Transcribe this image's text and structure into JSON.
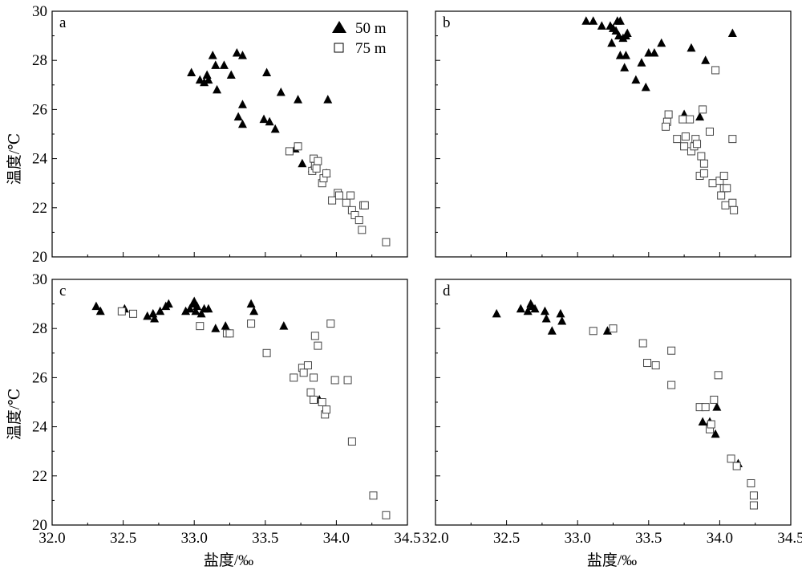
{
  "figure": {
    "xlabel": "盐度/‰",
    "ylabel": "温度/℃",
    "x_ticks": [
      "32.0",
      "32.5",
      "33.0",
      "33.5",
      "34.0",
      "34.5"
    ],
    "y_ticks": [
      "20",
      "22",
      "24",
      "26",
      "28",
      "30"
    ],
    "legend": [
      {
        "label": "50 m",
        "marker": "filled-triangle"
      },
      {
        "label": "75 m",
        "marker": "open-square"
      }
    ]
  },
  "chart_data": [
    {
      "type": "scatter",
      "panel": "a",
      "xlim": [
        32.0,
        34.5
      ],
      "ylim": [
        20,
        30
      ],
      "series": [
        {
          "name": "50 m",
          "marker": "filled-triangle",
          "color": "#000000",
          "points": [
            [
              32.98,
              27.5
            ],
            [
              33.04,
              27.2
            ],
            [
              33.07,
              27.1
            ],
            [
              33.09,
              27.4
            ],
            [
              33.1,
              27.2
            ],
            [
              33.13,
              28.2
            ],
            [
              33.15,
              27.8
            ],
            [
              33.16,
              26.8
            ],
            [
              33.21,
              27.8
            ],
            [
              33.26,
              27.4
            ],
            [
              33.3,
              28.3
            ],
            [
              33.34,
              28.2
            ],
            [
              33.31,
              25.7
            ],
            [
              33.34,
              26.2
            ],
            [
              33.34,
              25.4
            ],
            [
              33.49,
              25.6
            ],
            [
              33.51,
              27.5
            ],
            [
              33.53,
              25.5
            ],
            [
              33.57,
              25.2
            ],
            [
              33.61,
              26.7
            ],
            [
              33.71,
              24.4
            ],
            [
              33.73,
              26.4
            ],
            [
              33.76,
              23.8
            ],
            [
              33.83,
              23.6
            ],
            [
              33.93,
              23.4
            ],
            [
              33.94,
              26.4
            ]
          ]
        },
        {
          "name": "75 m",
          "marker": "open-square",
          "color": "#000000",
          "points": [
            [
              33.67,
              24.3
            ],
            [
              33.73,
              24.5
            ],
            [
              33.83,
              23.5
            ],
            [
              33.84,
              24.0
            ],
            [
              33.85,
              23.7
            ],
            [
              33.86,
              23.6
            ],
            [
              33.87,
              23.9
            ],
            [
              33.9,
              23.0
            ],
            [
              33.91,
              23.2
            ],
            [
              33.93,
              23.4
            ],
            [
              33.97,
              22.3
            ],
            [
              34.01,
              22.6
            ],
            [
              34.02,
              22.5
            ],
            [
              34.07,
              22.2
            ],
            [
              34.1,
              22.5
            ],
            [
              34.11,
              21.9
            ],
            [
              34.13,
              21.7
            ],
            [
              34.16,
              21.5
            ],
            [
              34.18,
              21.1
            ],
            [
              34.19,
              22.1
            ],
            [
              34.2,
              22.1
            ],
            [
              34.35,
              20.6
            ]
          ]
        }
      ]
    },
    {
      "type": "scatter",
      "panel": "b",
      "xlim": [
        32.0,
        34.5
      ],
      "ylim": [
        20,
        30
      ],
      "series": [
        {
          "name": "50 m",
          "marker": "filled-triangle",
          "color": "#000000",
          "points": [
            [
              33.06,
              29.6
            ],
            [
              33.11,
              29.6
            ],
            [
              33.17,
              29.4
            ],
            [
              33.23,
              29.4
            ],
            [
              33.25,
              29.3
            ],
            [
              33.27,
              29.2
            ],
            [
              33.28,
              29.6
            ],
            [
              33.3,
              29.6
            ],
            [
              33.29,
              29.0
            ],
            [
              33.32,
              28.9
            ],
            [
              33.34,
              29.0
            ],
            [
              33.35,
              29.1
            ],
            [
              33.24,
              28.7
            ],
            [
              33.3,
              28.2
            ],
            [
              33.34,
              28.2
            ],
            [
              33.33,
              27.7
            ],
            [
              33.41,
              27.2
            ],
            [
              33.45,
              27.9
            ],
            [
              33.48,
              26.9
            ],
            [
              33.5,
              28.3
            ],
            [
              33.54,
              28.3
            ],
            [
              33.59,
              28.7
            ],
            [
              33.75,
              25.8
            ],
            [
              33.8,
              28.5
            ],
            [
              33.86,
              25.7
            ],
            [
              33.9,
              28.0
            ],
            [
              34.09,
              29.1
            ]
          ]
        },
        {
          "name": "75 m",
          "marker": "open-square",
          "color": "#000000",
          "points": [
            [
              33.64,
              25.8
            ],
            [
              33.63,
              25.5
            ],
            [
              33.62,
              25.3
            ],
            [
              33.7,
              24.8
            ],
            [
              33.74,
              25.6
            ],
            [
              33.75,
              24.5
            ],
            [
              33.76,
              24.9
            ],
            [
              33.79,
              25.6
            ],
            [
              33.8,
              24.3
            ],
            [
              33.82,
              24.5
            ],
            [
              33.83,
              24.8
            ],
            [
              33.84,
              24.6
            ],
            [
              33.86,
              23.3
            ],
            [
              33.87,
              24.1
            ],
            [
              33.89,
              23.4
            ],
            [
              33.89,
              23.8
            ],
            [
              33.88,
              26.0
            ],
            [
              33.93,
              25.1
            ],
            [
              33.95,
              23.0
            ],
            [
              33.97,
              27.6
            ],
            [
              34.0,
              23.1
            ],
            [
              34.01,
              22.5
            ],
            [
              34.03,
              22.8
            ],
            [
              34.03,
              23.3
            ],
            [
              34.04,
              22.1
            ],
            [
              34.05,
              22.8
            ],
            [
              34.09,
              24.8
            ],
            [
              34.09,
              22.2
            ],
            [
              34.1,
              21.9
            ]
          ]
        }
      ]
    },
    {
      "type": "scatter",
      "panel": "c",
      "xlim": [
        32.0,
        34.5
      ],
      "ylim": [
        20,
        30
      ],
      "series": [
        {
          "name": "50 m",
          "marker": "filled-triangle",
          "color": "#000000",
          "points": [
            [
              32.31,
              28.9
            ],
            [
              32.34,
              28.7
            ],
            [
              32.51,
              28.8
            ],
            [
              32.67,
              28.5
            ],
            [
              32.71,
              28.6
            ],
            [
              32.72,
              28.4
            ],
            [
              32.76,
              28.7
            ],
            [
              32.8,
              28.9
            ],
            [
              32.82,
              29.0
            ],
            [
              32.94,
              28.7
            ],
            [
              32.97,
              28.8
            ],
            [
              32.99,
              29.0
            ],
            [
              33.0,
              29.1
            ],
            [
              33.01,
              28.7
            ],
            [
              33.02,
              28.9
            ],
            [
              33.05,
              28.6
            ],
            [
              33.07,
              28.8
            ],
            [
              33.1,
              28.8
            ],
            [
              33.15,
              28.0
            ],
            [
              33.22,
              28.1
            ],
            [
              33.4,
              29.0
            ],
            [
              33.42,
              28.7
            ],
            [
              33.63,
              28.1
            ],
            [
              33.88,
              25.1
            ]
          ]
        },
        {
          "name": "75 m",
          "marker": "open-square",
          "color": "#000000",
          "points": [
            [
              32.49,
              28.7
            ],
            [
              32.57,
              28.6
            ],
            [
              33.04,
              28.1
            ],
            [
              33.23,
              27.8
            ],
            [
              33.25,
              27.8
            ],
            [
              33.4,
              28.2
            ],
            [
              33.51,
              27.0
            ],
            [
              33.7,
              26.0
            ],
            [
              33.76,
              26.4
            ],
            [
              33.77,
              26.2
            ],
            [
              33.8,
              26.5
            ],
            [
              33.82,
              25.4
            ],
            [
              33.84,
              25.1
            ],
            [
              33.84,
              26.0
            ],
            [
              33.85,
              27.7
            ],
            [
              33.87,
              27.3
            ],
            [
              33.9,
              25.0
            ],
            [
              33.92,
              24.5
            ],
            [
              33.93,
              24.7
            ],
            [
              33.96,
              28.2
            ],
            [
              33.99,
              25.9
            ],
            [
              34.08,
              25.9
            ],
            [
              34.11,
              23.4
            ],
            [
              34.26,
              21.2
            ],
            [
              34.35,
              20.4
            ]
          ]
        }
      ]
    },
    {
      "type": "scatter",
      "panel": "d",
      "xlim": [
        32.0,
        34.5
      ],
      "ylim": [
        20,
        30
      ],
      "series": [
        {
          "name": "50 m",
          "marker": "filled-triangle",
          "color": "#000000",
          "points": [
            [
              32.43,
              28.6
            ],
            [
              32.6,
              28.8
            ],
            [
              32.65,
              28.7
            ],
            [
              32.67,
              29.0
            ],
            [
              32.68,
              28.9
            ],
            [
              32.7,
              28.8
            ],
            [
              32.77,
              28.7
            ],
            [
              32.78,
              28.4
            ],
            [
              32.82,
              27.9
            ],
            [
              32.88,
              28.6
            ],
            [
              32.89,
              28.3
            ],
            [
              33.21,
              27.9
            ],
            [
              33.88,
              24.2
            ],
            [
              33.93,
              24.2
            ],
            [
              33.97,
              23.7
            ],
            [
              33.98,
              24.8
            ],
            [
              34.13,
              22.5
            ]
          ]
        },
        {
          "name": "75 m",
          "marker": "open-square",
          "color": "#000000",
          "points": [
            [
              33.11,
              27.9
            ],
            [
              33.25,
              28.0
            ],
            [
              33.46,
              27.4
            ],
            [
              33.49,
              26.6
            ],
            [
              33.55,
              26.5
            ],
            [
              33.66,
              25.7
            ],
            [
              33.66,
              27.1
            ],
            [
              33.86,
              24.8
            ],
            [
              33.9,
              24.8
            ],
            [
              33.93,
              23.9
            ],
            [
              33.94,
              24.1
            ],
            [
              33.96,
              25.1
            ],
            [
              33.99,
              26.1
            ],
            [
              34.08,
              22.7
            ],
            [
              34.12,
              22.4
            ],
            [
              34.22,
              21.7
            ],
            [
              34.24,
              21.2
            ],
            [
              34.24,
              20.8
            ]
          ]
        }
      ]
    }
  ]
}
